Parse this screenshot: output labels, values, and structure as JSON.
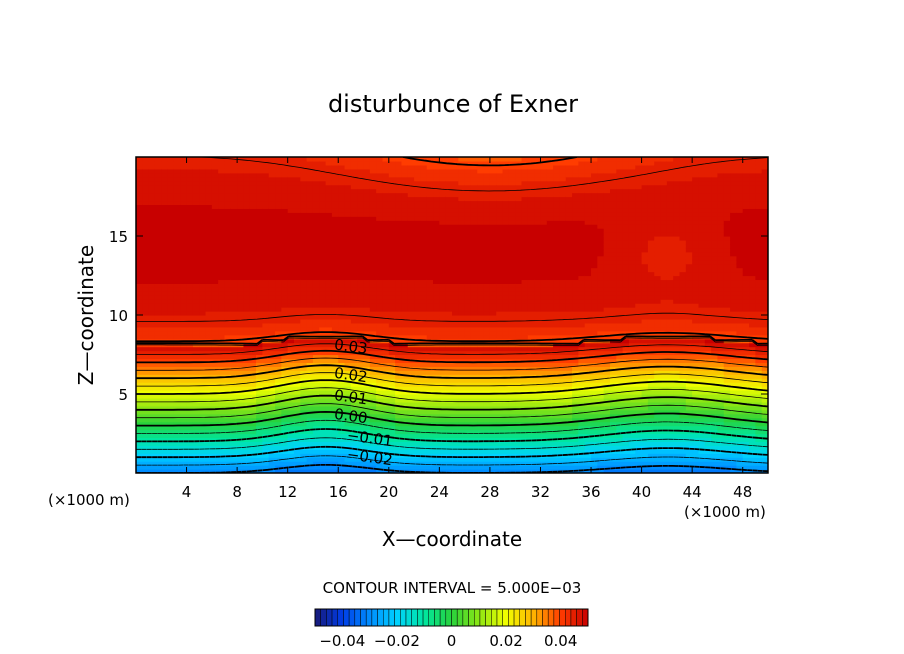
{
  "chart_data": {
    "type": "heatmap",
    "title": "disturbunce of Exner",
    "xlabel": "X—coordinate",
    "ylabel": "Z—coordinate",
    "x_unit": "(×1000 m)",
    "z_unit": "(×1000 m)",
    "xlim": [
      0,
      50
    ],
    "ylim": [
      0,
      20
    ],
    "x_ticks": [
      4,
      8,
      12,
      16,
      20,
      24,
      28,
      32,
      36,
      40,
      44,
      48
    ],
    "y_ticks": [
      5,
      10,
      15
    ],
    "value_range": [
      -0.05,
      0.05
    ],
    "contour_interval_text": "CONTOUR INTERVAL = 5.000E−03",
    "contour_labels": [
      {
        "text": "0.03",
        "x": 17.0,
        "z": 8.0
      },
      {
        "text": "0.02",
        "x": 17.0,
        "z": 6.2
      },
      {
        "text": "0.01",
        "x": 17.0,
        "z": 4.8
      },
      {
        "text": "0.00",
        "x": 17.0,
        "z": 3.6
      },
      {
        "text": "−0.01",
        "x": 18.5,
        "z": 2.2
      },
      {
        "text": "−0.02",
        "x": 18.5,
        "z": 1.0
      }
    ],
    "colorbar_ticks": [
      "−0.04",
      "−0.02",
      "0",
      "0.02",
      "0.04"
    ],
    "colorbar_tick_values": [
      -0.04,
      -0.02,
      0,
      0.02,
      0.04
    ]
  }
}
